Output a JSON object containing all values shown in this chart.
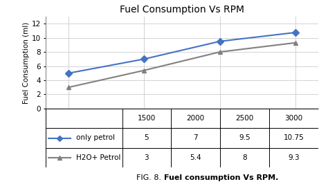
{
  "title": "Fuel Consumption Vs RPM",
  "ylabel": "Fuel Consumption (ml)",
  "x_values": [
    1500,
    2000,
    2500,
    3000
  ],
  "series": [
    {
      "label": "only petrol",
      "y_values": [
        5,
        7,
        9.5,
        10.75
      ],
      "color": "#4472C4",
      "marker": "D",
      "linewidth": 1.5,
      "markersize": 5
    },
    {
      "label": "H2O+ Petrol",
      "y_values": [
        3,
        5.4,
        8,
        9.3
      ],
      "color": "#808080",
      "marker": "^",
      "linewidth": 1.5,
      "markersize": 5
    }
  ],
  "ylim": [
    0,
    13
  ],
  "yticks": [
    0,
    2,
    4,
    6,
    8,
    10,
    12
  ],
  "xlim": [
    1350,
    3150
  ],
  "xticks": [
    1500,
    2000,
    2500,
    3000
  ],
  "table_header": [
    "",
    "1500",
    "2000",
    "2500",
    "3000"
  ],
  "table_data": [
    [
      "only petrol",
      "5",
      "7",
      "9.5",
      "10.75"
    ],
    [
      "H2O+ Petrol",
      "3",
      "5.4",
      "8",
      "9.3"
    ]
  ],
  "fig_caption_prefix": "FIG. 8. ",
  "fig_caption_bold": "Fuel consumption Vs RPM.",
  "background_color": "#ffffff",
  "border_color": "#888888",
  "grid_color": "#cccccc",
  "title_fontsize": 10,
  "label_fontsize": 7.5,
  "tick_fontsize": 7.5,
  "table_fontsize": 7.5,
  "caption_fontsize": 8
}
